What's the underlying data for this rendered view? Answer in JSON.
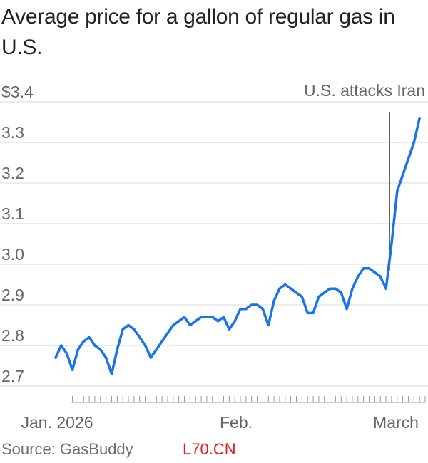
{
  "title": "Average price for a gallon of regular gas in U.S.",
  "source": "Source: GasBuddy",
  "watermark": "L70.CN",
  "colors": {
    "line": "#1a73e8",
    "grid": "#d9d9d9",
    "axis_text": "#666666",
    "annotation_line": "#333333"
  },
  "chart_data": {
    "type": "line",
    "title": "Average price for a gallon of regular gas in U.S.",
    "xlabel": "",
    "ylabel": "",
    "ylim": [
      2.65,
      3.4
    ],
    "yticks": [
      {
        "value": 3.4,
        "label": "$3.4"
      },
      {
        "value": 3.3,
        "label": "3.3"
      },
      {
        "value": 3.2,
        "label": "3.2"
      },
      {
        "value": 3.1,
        "label": "3.1"
      },
      {
        "value": 3.0,
        "label": "3.0"
      },
      {
        "value": 2.9,
        "label": "2.9"
      },
      {
        "value": 2.8,
        "label": "2.8"
      },
      {
        "value": 2.7,
        "label": "2.7"
      }
    ],
    "grid": true,
    "xdomain": [
      "2026-01-01",
      "2026-03-08"
    ],
    "xticks": [
      {
        "date": "2026-01-01",
        "label": "Jan. 2026"
      },
      {
        "date": "2026-02-01",
        "label": "Feb."
      },
      {
        "date": "2026-03-01",
        "label": "March"
      }
    ],
    "annotation": {
      "date": "2026-02-28",
      "text": "U.S. attacks Iran"
    },
    "series": [
      {
        "points": [
          [
            "2026-01-01",
            2.77
          ],
          [
            "2026-01-02",
            2.8
          ],
          [
            "2026-01-03",
            2.78
          ],
          [
            "2026-01-04",
            2.74
          ],
          [
            "2026-01-05",
            2.79
          ],
          [
            "2026-01-06",
            2.81
          ],
          [
            "2026-01-07",
            2.82
          ],
          [
            "2026-01-08",
            2.8
          ],
          [
            "2026-01-09",
            2.79
          ],
          [
            "2026-01-10",
            2.77
          ],
          [
            "2026-01-11",
            2.73
          ],
          [
            "2026-01-12",
            2.79
          ],
          [
            "2026-01-13",
            2.84
          ],
          [
            "2026-01-14",
            2.85
          ],
          [
            "2026-01-15",
            2.84
          ],
          [
            "2026-01-16",
            2.82
          ],
          [
            "2026-01-17",
            2.8
          ],
          [
            "2026-01-18",
            2.77
          ],
          [
            "2026-01-19",
            2.79
          ],
          [
            "2026-01-20",
            2.81
          ],
          [
            "2026-01-21",
            2.83
          ],
          [
            "2026-01-22",
            2.85
          ],
          [
            "2026-01-23",
            2.86
          ],
          [
            "2026-01-24",
            2.87
          ],
          [
            "2026-01-25",
            2.85
          ],
          [
            "2026-01-26",
            2.86
          ],
          [
            "2026-01-27",
            2.87
          ],
          [
            "2026-01-28",
            2.87
          ],
          [
            "2026-01-29",
            2.87
          ],
          [
            "2026-01-30",
            2.86
          ],
          [
            "2026-01-31",
            2.87
          ],
          [
            "2026-02-01",
            2.84
          ],
          [
            "2026-02-02",
            2.86
          ],
          [
            "2026-02-03",
            2.89
          ],
          [
            "2026-02-04",
            2.89
          ],
          [
            "2026-02-05",
            2.9
          ],
          [
            "2026-02-06",
            2.9
          ],
          [
            "2026-02-07",
            2.89
          ],
          [
            "2026-02-08",
            2.85
          ],
          [
            "2026-02-09",
            2.91
          ],
          [
            "2026-02-10",
            2.94
          ],
          [
            "2026-02-11",
            2.95
          ],
          [
            "2026-02-12",
            2.94
          ],
          [
            "2026-02-13",
            2.93
          ],
          [
            "2026-02-14",
            2.92
          ],
          [
            "2026-02-15",
            2.88
          ],
          [
            "2026-02-16",
            2.88
          ],
          [
            "2026-02-17",
            2.92
          ],
          [
            "2026-02-18",
            2.93
          ],
          [
            "2026-02-19",
            2.94
          ],
          [
            "2026-02-20",
            2.94
          ],
          [
            "2026-02-21",
            2.93
          ],
          [
            "2026-02-22",
            2.89
          ],
          [
            "2026-02-23",
            2.94
          ],
          [
            "2026-02-24",
            2.97
          ],
          [
            "2026-02-25",
            2.99
          ],
          [
            "2026-02-26",
            2.99
          ],
          [
            "2026-02-27",
            2.98
          ],
          [
            "2026-02-28",
            2.97
          ],
          [
            "2026-03-01",
            2.94
          ],
          [
            "2026-03-02",
            3.05
          ],
          [
            "2026-03-03",
            3.18
          ],
          [
            "2026-03-04",
            3.22
          ],
          [
            "2026-03-05",
            3.26
          ],
          [
            "2026-03-06",
            3.3
          ],
          [
            "2026-03-07",
            3.36
          ]
        ]
      }
    ]
  }
}
